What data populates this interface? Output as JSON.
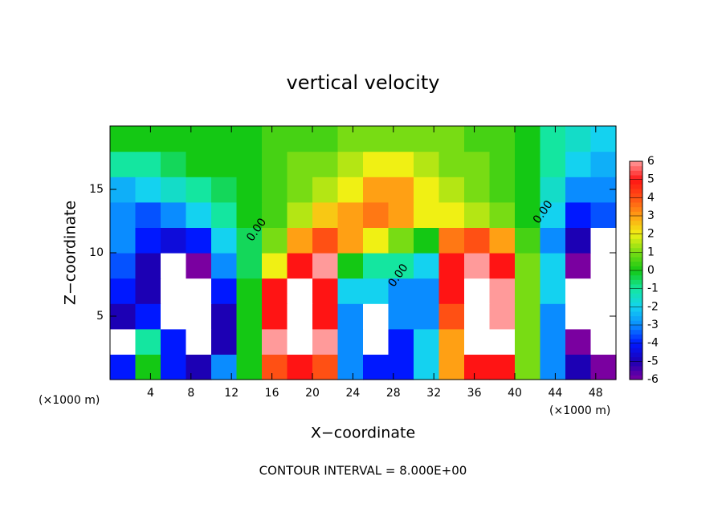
{
  "chart_data": {
    "type": "heatmap",
    "title": "vertical velocity",
    "xlabel": "X−coordinate",
    "ylabel": "Z−coordinate",
    "yunit": "(×1000 m)",
    "xunit": "(×1000 m)",
    "footer": "CONTOUR INTERVAL = 8.000E+00",
    "xlim": [
      0,
      50
    ],
    "ylim": [
      0,
      20
    ],
    "xticks": [
      4,
      8,
      12,
      16,
      20,
      24,
      28,
      32,
      36,
      40,
      44,
      48
    ],
    "yticks": [
      5,
      10,
      15
    ],
    "x": [
      1.25,
      3.75,
      6.25,
      8.75,
      11.25,
      13.75,
      16.25,
      18.75,
      21.25,
      23.75,
      26.25,
      28.75,
      31.25,
      33.75,
      36.25,
      38.75,
      41.25,
      43.75,
      46.25,
      48.75
    ],
    "z": [
      1,
      3,
      5,
      7,
      9,
      11,
      13,
      15,
      17,
      19
    ],
    "values": [
      [
        -4,
        0,
        -4,
        -5,
        -3,
        0,
        4,
        5,
        4,
        -3,
        -4,
        -4,
        -2,
        3,
        5,
        5,
        1,
        -3,
        -5,
        -6
      ],
      [
        -7,
        -1,
        -4,
        -7,
        -5,
        0,
        6,
        9,
        6,
        -3,
        -7,
        -4,
        -2,
        3,
        8,
        8,
        1,
        -3,
        -6,
        -8
      ],
      [
        -5,
        -4,
        -7,
        -8,
        -5,
        0,
        5,
        8,
        5,
        -3,
        -7,
        -3,
        -3,
        4,
        7,
        6,
        1,
        -3,
        -7,
        -9
      ],
      [
        -4,
        -5,
        -7,
        -8,
        -4,
        0,
        5,
        7,
        5,
        -2,
        -2,
        -3,
        -3,
        5,
        7,
        6,
        1,
        -2,
        -7,
        -9
      ],
      [
        -3.5,
        -5,
        -7,
        -6,
        -3,
        -0.5,
        2,
        5,
        6,
        0,
        -1,
        -1,
        -2,
        5,
        6,
        5,
        1,
        -2,
        -6,
        -8
      ],
      [
        -3,
        -4,
        -4.5,
        -4,
        -2,
        -0.5,
        1,
        3,
        4,
        3,
        2,
        1,
        0,
        3.5,
        4,
        3,
        0.5,
        -3,
        -5,
        -7
      ],
      [
        -3,
        -3.5,
        -3,
        -2,
        -1,
        0,
        0.5,
        1.5,
        2.5,
        3,
        3.5,
        3,
        2,
        2,
        1.5,
        1,
        0,
        -2,
        -4,
        -3.5
      ],
      [
        -2.5,
        -2,
        -1.5,
        -1,
        -0.5,
        0,
        0.5,
        1,
        1.5,
        2,
        3,
        3,
        2,
        1.5,
        1,
        0.5,
        0,
        -1.5,
        -3,
        -3
      ],
      [
        -1,
        -1,
        -0.5,
        0,
        0,
        0,
        0.5,
        1,
        1,
        1.5,
        2,
        2,
        1.5,
        1,
        1,
        0.5,
        0,
        -1,
        -2,
        -2.5
      ],
      [
        0,
        0,
        0,
        0,
        0,
        0,
        0.5,
        0.5,
        0.5,
        1,
        1,
        1,
        1,
        1,
        0.5,
        0.5,
        0,
        -1,
        -1.5,
        -2
      ]
    ],
    "cbticks": [
      -6,
      -5,
      -4,
      -3,
      -2,
      -1,
      0,
      1,
      2,
      3,
      4,
      5,
      6
    ],
    "cbcolors": [
      "#7a00a0",
      "#1c00b4",
      "#0018ff",
      "#0a8cff",
      "#14d2f0",
      "#14e6a0",
      "#14c814",
      "#78dc14",
      "#f0f014",
      "#ffa014",
      "#ff5014",
      "#ff1414",
      "#ff9a9a"
    ],
    "beyond_color": "#ffffff",
    "contour_labels": [
      {
        "text": "0.00",
        "x": 14.5,
        "z": 11.8
      },
      {
        "text": "0.00",
        "x": 28.5,
        "z": 8.2
      },
      {
        "text": "0.00",
        "x": 42.8,
        "z": 13.2
      }
    ]
  }
}
